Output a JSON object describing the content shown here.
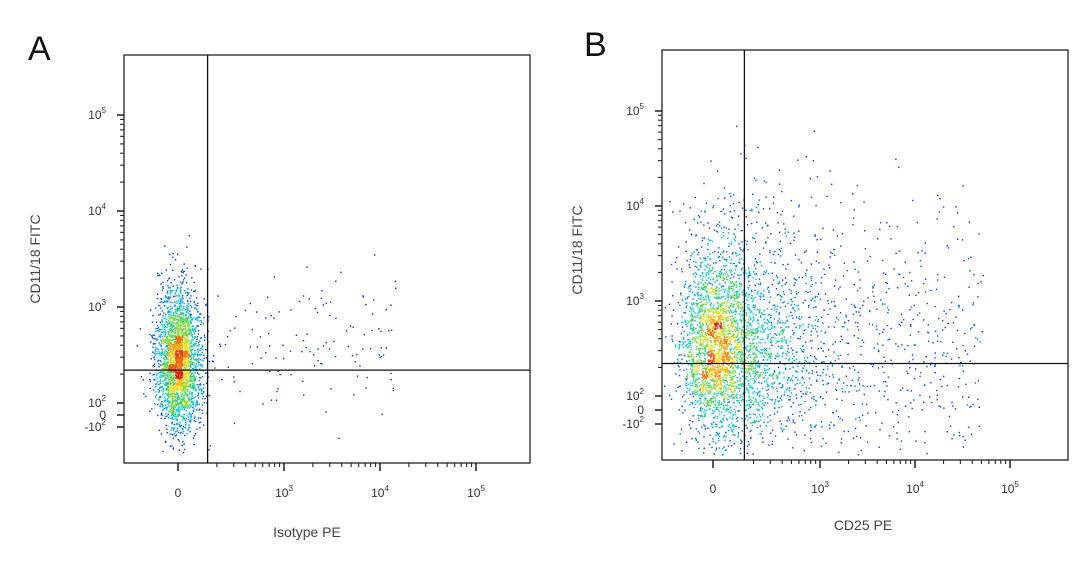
{
  "chart_data": [
    {
      "type": "scatter",
      "panel_label": "A",
      "xlabel": "Isotype PE",
      "ylabel": "CD11/18 FITC",
      "xscale": "biexponential",
      "yscale": "biexponential",
      "x_ticks": [
        {
          "base": "0",
          "exp": "",
          "value": 0
        },
        {
          "base": "10",
          "exp": "3",
          "value": 1000
        },
        {
          "base": "10",
          "exp": "4",
          "value": 10000
        },
        {
          "base": "10",
          "exp": "5",
          "value": 100000
        }
      ],
      "y_ticks": [
        {
          "base": "-10",
          "exp": "2",
          "value": -100
        },
        {
          "base": "0",
          "exp": "",
          "value": 0
        },
        {
          "base": "10",
          "exp": "2",
          "value": 100
        },
        {
          "base": "10",
          "exp": "3",
          "value": 1000
        },
        {
          "base": "10",
          "exp": "4",
          "value": 10000
        },
        {
          "base": "10",
          "exp": "5",
          "value": 100000
        }
      ],
      "gates": {
        "x": 160,
        "y": 220
      },
      "population": {
        "main_x": 0,
        "main_y": 250
      },
      "grid": false,
      "colormap": "density (blue → cyan → green → yellow → red)"
    },
    {
      "type": "scatter",
      "panel_label": "B",
      "xlabel": "CD25 PE",
      "ylabel": "CD11/18 FITC",
      "xscale": "biexponential",
      "yscale": "biexponential",
      "x_ticks": [
        {
          "base": "0",
          "exp": "",
          "value": 0
        },
        {
          "base": "10",
          "exp": "3",
          "value": 1000
        },
        {
          "base": "10",
          "exp": "4",
          "value": 10000
        },
        {
          "base": "10",
          "exp": "5",
          "value": 100000
        }
      ],
      "y_ticks": [
        {
          "base": "-10",
          "exp": "2",
          "value": -100
        },
        {
          "base": "0",
          "exp": "",
          "value": 0
        },
        {
          "base": "10",
          "exp": "2",
          "value": 100
        },
        {
          "base": "10",
          "exp": "3",
          "value": 1000
        },
        {
          "base": "10",
          "exp": "4",
          "value": 10000
        },
        {
          "base": "10",
          "exp": "5",
          "value": 100000
        }
      ],
      "gates": {
        "x": 160,
        "y": 220
      },
      "population": {
        "main_x": 0,
        "main_y": 240
      },
      "grid": false,
      "colormap": "density (blue → cyan → green → yellow → red)"
    }
  ]
}
